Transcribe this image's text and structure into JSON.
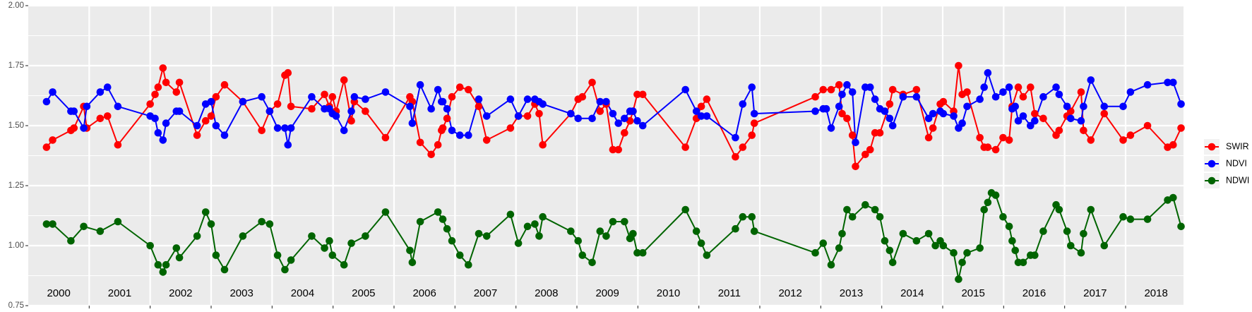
{
  "chart_data": {
    "type": "line",
    "xlim": [
      2000.0,
      2018.95
    ],
    "xticks": [
      2001,
      2002,
      2003,
      2004,
      2005,
      2006,
      2007,
      2008,
      2009,
      2010,
      2011,
      2012,
      2013,
      2014,
      2015,
      2016,
      2017,
      2018
    ],
    "ylim": [
      0.75,
      2.0
    ],
    "yticks": [
      {
        "value": 0.75,
        "label": "0.75"
      },
      {
        "value": 1.0,
        "label": "1.00"
      },
      {
        "value": 1.25,
        "label": "1.25"
      },
      {
        "value": 1.5,
        "label": "1.50"
      },
      {
        "value": 1.75,
        "label": "1.75"
      },
      {
        "value": 2.0,
        "label": "2.00"
      }
    ],
    "grid": true,
    "minor_grid": true,
    "legend": "right",
    "annotations": [
      {
        "text": "2000",
        "x": 2000.5
      },
      {
        "text": "2001",
        "x": 2001.5
      },
      {
        "text": "2002",
        "x": 2002.5
      },
      {
        "text": "2003",
        "x": 2003.5
      },
      {
        "text": "2004",
        "x": 2004.5
      },
      {
        "text": "2005",
        "x": 2005.5
      },
      {
        "text": "2006",
        "x": 2006.5
      },
      {
        "text": "2007",
        "x": 2007.5
      },
      {
        "text": "2008",
        "x": 2008.5
      },
      {
        "text": "2009",
        "x": 2009.5
      },
      {
        "text": "2010",
        "x": 2010.5
      },
      {
        "text": "2011",
        "x": 2011.5
      },
      {
        "text": "2012",
        "x": 2012.5
      },
      {
        "text": "2013",
        "x": 2013.5
      },
      {
        "text": "2014",
        "x": 2014.5
      },
      {
        "text": "2015",
        "x": 2015.5
      },
      {
        "text": "2016",
        "x": 2016.5
      },
      {
        "text": "2017",
        "x": 2017.5
      },
      {
        "text": "2018",
        "x": 2018.5
      }
    ],
    "series": [
      {
        "name": "SWIR",
        "color": "#ff0000",
        "x": [
          2000.3,
          2000.4,
          2000.7,
          2000.75,
          2000.91,
          2000.96,
          2001.18,
          2001.3,
          2001.47,
          2002.0,
          2002.08,
          2002.13,
          2002.21,
          2002.26,
          2002.43,
          2002.48,
          2002.77,
          2002.91,
          2003.0,
          2003.08,
          2003.22,
          2003.52,
          2003.83,
          2003.96,
          2004.09,
          2004.21,
          2004.26,
          2004.31,
          2004.65,
          2004.86,
          2004.94,
          2004.99,
          2005.05,
          2005.18,
          2005.3,
          2005.35,
          2005.53,
          2005.86,
          2006.26,
          2006.3,
          2006.43,
          2006.61,
          2006.72,
          2006.78,
          2006.8,
          2006.87,
          2006.95,
          2007.08,
          2007.22,
          2007.39,
          2007.52,
          2007.91,
          2008.04,
          2008.19,
          2008.31,
          2008.38,
          2008.44,
          2008.9,
          2009.02,
          2009.09,
          2009.25,
          2009.38,
          2009.48,
          2009.59,
          2009.68,
          2009.78,
          2009.87,
          2009.92,
          2009.99,
          2010.08,
          2010.78,
          2010.96,
          2011.04,
          2011.13,
          2011.6,
          2011.72,
          2011.87,
          2011.91,
          2012.91,
          2013.04,
          2013.17,
          2013.3,
          2013.35,
          2013.43,
          2013.52,
          2013.57,
          2013.73,
          2013.81,
          2013.89,
          2013.97,
          2014.13,
          2014.18,
          2014.35,
          2014.57,
          2014.77,
          2014.84,
          2014.96,
          2015.01,
          2015.18,
          2015.26,
          2015.32,
          2015.4,
          2015.61,
          2015.68,
          2015.74,
          2015.87,
          2015.99,
          2016.09,
          2016.14,
          2016.24,
          2016.32,
          2016.44,
          2016.51,
          2016.65,
          2016.86,
          2016.91,
          2017.04,
          2017.1,
          2017.27,
          2017.31,
          2017.43,
          2017.65,
          2017.96,
          2018.08,
          2018.36,
          2018.69,
          2018.78,
          2018.91
        ],
        "values": [
          1.41,
          1.44,
          1.48,
          1.49,
          1.58,
          1.49,
          1.53,
          1.54,
          1.42,
          1.59,
          1.63,
          1.66,
          1.74,
          1.68,
          1.64,
          1.68,
          1.46,
          1.52,
          1.54,
          1.62,
          1.67,
          1.6,
          1.48,
          1.56,
          1.59,
          1.71,
          1.72,
          1.58,
          1.57,
          1.63,
          1.58,
          1.62,
          1.56,
          1.69,
          1.52,
          1.6,
          1.56,
          1.45,
          1.62,
          1.6,
          1.43,
          1.38,
          1.42,
          1.48,
          1.49,
          1.53,
          1.62,
          1.66,
          1.65,
          1.58,
          1.44,
          1.49,
          1.54,
          1.54,
          1.59,
          1.55,
          1.42,
          1.55,
          1.61,
          1.62,
          1.68,
          1.56,
          1.59,
          1.4,
          1.4,
          1.47,
          1.52,
          1.56,
          1.63,
          1.63,
          1.41,
          1.53,
          1.58,
          1.61,
          1.37,
          1.41,
          1.46,
          1.51,
          1.62,
          1.65,
          1.65,
          1.67,
          1.55,
          1.53,
          1.46,
          1.33,
          1.38,
          1.4,
          1.47,
          1.47,
          1.59,
          1.65,
          1.63,
          1.65,
          1.45,
          1.49,
          1.59,
          1.6,
          1.56,
          1.75,
          1.63,
          1.64,
          1.45,
          1.41,
          1.41,
          1.4,
          1.45,
          1.44,
          1.58,
          1.66,
          1.62,
          1.66,
          1.55,
          1.53,
          1.46,
          1.48,
          1.54,
          1.56,
          1.64,
          1.48,
          1.44,
          1.55,
          1.44,
          1.46,
          1.5,
          1.41,
          1.42,
          1.49
        ]
      },
      {
        "name": "NDVI",
        "color": "#0000ff",
        "x": [
          2000.3,
          2000.4,
          2000.7,
          2000.75,
          2000.91,
          2000.96,
          2001.18,
          2001.3,
          2001.47,
          2002.0,
          2002.08,
          2002.13,
          2002.21,
          2002.26,
          2002.43,
          2002.48,
          2002.77,
          2002.91,
          2003.0,
          2003.08,
          2003.22,
          2003.52,
          2003.83,
          2003.96,
          2004.09,
          2004.21,
          2004.26,
          2004.31,
          2004.65,
          2004.86,
          2004.94,
          2004.99,
          2005.05,
          2005.18,
          2005.3,
          2005.35,
          2005.53,
          2005.86,
          2006.26,
          2006.3,
          2006.43,
          2006.61,
          2006.72,
          2006.78,
          2006.8,
          2006.87,
          2006.95,
          2007.08,
          2007.22,
          2007.39,
          2007.52,
          2007.91,
          2008.04,
          2008.19,
          2008.31,
          2008.38,
          2008.44,
          2008.9,
          2009.02,
          2009.25,
          2009.38,
          2009.48,
          2009.59,
          2009.68,
          2009.78,
          2009.87,
          2009.92,
          2009.99,
          2010.08,
          2010.78,
          2010.96,
          2011.04,
          2011.13,
          2011.6,
          2011.72,
          2011.87,
          2011.91,
          2012.91,
          2013.04,
          2013.09,
          2013.17,
          2013.3,
          2013.35,
          2013.43,
          2013.52,
          2013.57,
          2013.73,
          2013.81,
          2013.89,
          2013.97,
          2014.05,
          2014.13,
          2014.18,
          2014.35,
          2014.57,
          2014.77,
          2014.84,
          2014.96,
          2015.01,
          2015.18,
          2015.26,
          2015.32,
          2015.4,
          2015.61,
          2015.68,
          2015.74,
          2015.87,
          2015.99,
          2016.09,
          2016.14,
          2016.19,
          2016.24,
          2016.32,
          2016.44,
          2016.51,
          2016.65,
          2016.86,
          2016.91,
          2017.04,
          2017.1,
          2017.27,
          2017.31,
          2017.43,
          2017.65,
          2017.96,
          2018.08,
          2018.36,
          2018.69,
          2018.78,
          2018.91
        ],
        "values": [
          1.6,
          1.64,
          1.56,
          1.56,
          1.49,
          1.58,
          1.64,
          1.66,
          1.58,
          1.54,
          1.53,
          1.47,
          1.44,
          1.51,
          1.56,
          1.56,
          1.5,
          1.59,
          1.6,
          1.5,
          1.46,
          1.6,
          1.62,
          1.56,
          1.49,
          1.49,
          1.42,
          1.49,
          1.62,
          1.57,
          1.57,
          1.55,
          1.54,
          1.48,
          1.56,
          1.62,
          1.61,
          1.64,
          1.58,
          1.51,
          1.67,
          1.57,
          1.65,
          1.6,
          1.6,
          1.57,
          1.48,
          1.46,
          1.46,
          1.61,
          1.54,
          1.61,
          1.54,
          1.61,
          1.61,
          1.6,
          1.59,
          1.55,
          1.53,
          1.53,
          1.6,
          1.6,
          1.55,
          1.51,
          1.53,
          1.56,
          1.56,
          1.52,
          1.5,
          1.65,
          1.56,
          1.54,
          1.54,
          1.45,
          1.59,
          1.66,
          1.55,
          1.56,
          1.57,
          1.57,
          1.49,
          1.58,
          1.63,
          1.67,
          1.64,
          1.43,
          1.66,
          1.66,
          1.61,
          1.57,
          1.56,
          1.53,
          1.5,
          1.62,
          1.62,
          1.53,
          1.55,
          1.56,
          1.55,
          1.54,
          1.49,
          1.51,
          1.58,
          1.61,
          1.66,
          1.72,
          1.62,
          1.64,
          1.66,
          1.57,
          1.58,
          1.52,
          1.54,
          1.5,
          1.52,
          1.62,
          1.66,
          1.63,
          1.58,
          1.53,
          1.52,
          1.58,
          1.69,
          1.58,
          1.58,
          1.64,
          1.67,
          1.68,
          1.68,
          1.59
        ]
      },
      {
        "name": "NDWI",
        "color": "#006400",
        "x": [
          2000.3,
          2000.4,
          2000.7,
          2000.91,
          2001.18,
          2001.47,
          2002.0,
          2002.13,
          2002.21,
          2002.26,
          2002.43,
          2002.48,
          2002.77,
          2002.91,
          2003.0,
          2003.08,
          2003.22,
          2003.52,
          2003.83,
          2003.96,
          2004.09,
          2004.21,
          2004.31,
          2004.65,
          2004.86,
          2004.94,
          2004.99,
          2005.18,
          2005.3,
          2005.53,
          2005.86,
          2006.26,
          2006.3,
          2006.43,
          2006.72,
          2006.8,
          2006.87,
          2006.95,
          2007.08,
          2007.22,
          2007.39,
          2007.52,
          2007.91,
          2008.04,
          2008.19,
          2008.31,
          2008.38,
          2008.44,
          2008.9,
          2009.02,
          2009.09,
          2009.25,
          2009.38,
          2009.48,
          2009.59,
          2009.78,
          2009.87,
          2009.92,
          2009.99,
          2010.08,
          2010.78,
          2010.96,
          2011.04,
          2011.13,
          2011.6,
          2011.72,
          2011.87,
          2011.91,
          2012.91,
          2013.04,
          2013.17,
          2013.3,
          2013.35,
          2013.43,
          2013.52,
          2013.73,
          2013.89,
          2013.97,
          2014.05,
          2014.13,
          2014.18,
          2014.35,
          2014.57,
          2014.77,
          2014.88,
          2014.96,
          2015.01,
          2015.18,
          2015.26,
          2015.32,
          2015.4,
          2015.61,
          2015.68,
          2015.74,
          2015.8,
          2015.87,
          2015.99,
          2016.09,
          2016.14,
          2016.19,
          2016.24,
          2016.32,
          2016.44,
          2016.51,
          2016.65,
          2016.86,
          2016.91,
          2017.04,
          2017.1,
          2017.27,
          2017.31,
          2017.43,
          2017.65,
          2017.96,
          2018.08,
          2018.36,
          2018.69,
          2018.78,
          2018.91
        ],
        "values": [
          1.09,
          1.09,
          1.02,
          1.08,
          1.06,
          1.1,
          1.0,
          0.92,
          0.89,
          0.92,
          0.99,
          0.95,
          1.04,
          1.14,
          1.09,
          0.96,
          0.9,
          1.04,
          1.1,
          1.09,
          0.96,
          0.9,
          0.94,
          1.04,
          0.99,
          1.02,
          0.96,
          0.92,
          1.01,
          1.04,
          1.14,
          0.98,
          0.93,
          1.1,
          1.14,
          1.11,
          1.07,
          1.02,
          0.96,
          0.92,
          1.05,
          1.04,
          1.13,
          1.01,
          1.08,
          1.09,
          1.04,
          1.12,
          1.06,
          1.02,
          0.96,
          0.93,
          1.06,
          1.04,
          1.1,
          1.1,
          1.03,
          1.05,
          0.97,
          0.97,
          1.15,
          1.06,
          1.01,
          0.96,
          1.07,
          1.12,
          1.12,
          1.06,
          0.97,
          1.01,
          0.92,
          0.99,
          1.05,
          1.15,
          1.12,
          1.17,
          1.15,
          1.12,
          1.02,
          0.98,
          0.93,
          1.05,
          1.02,
          1.05,
          1.0,
          1.02,
          1.0,
          0.97,
          0.86,
          0.93,
          0.97,
          0.99,
          1.15,
          1.18,
          1.22,
          1.21,
          1.12,
          1.08,
          1.02,
          0.98,
          0.93,
          0.93,
          0.96,
          0.96,
          1.06,
          1.17,
          1.15,
          1.06,
          1.0,
          0.97,
          1.05,
          1.15,
          1.0,
          1.12,
          1.11,
          1.11,
          1.19,
          1.2,
          1.08
        ]
      }
    ]
  }
}
